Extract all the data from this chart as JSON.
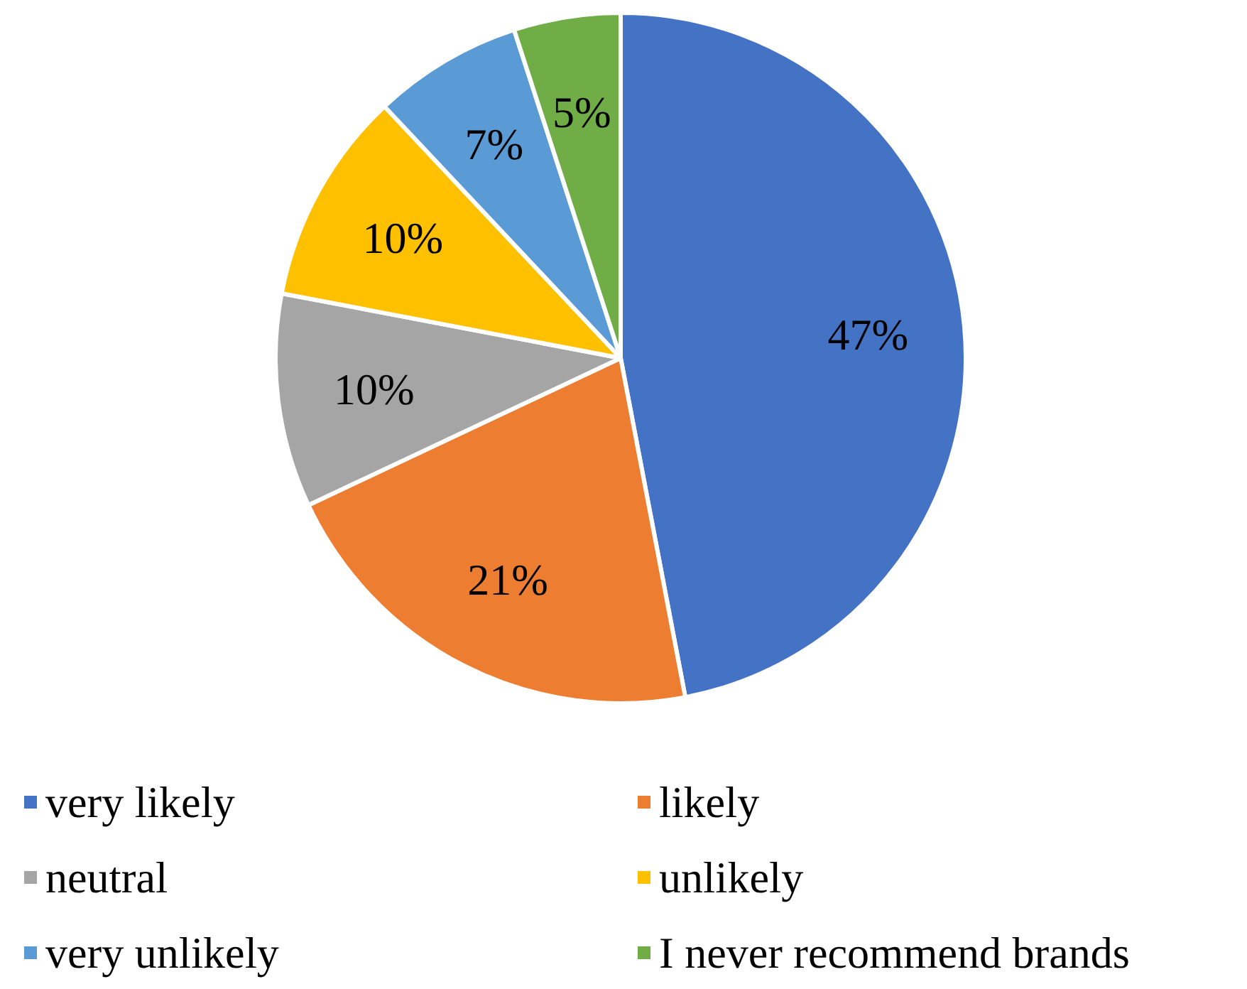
{
  "chart_data": {
    "type": "pie",
    "categories": [
      "very likely",
      "likely",
      "neutral",
      "unlikely",
      "very unlikely",
      "I never recommend brands"
    ],
    "values": [
      47,
      21,
      10,
      10,
      7,
      5
    ],
    "value_labels": [
      "47%",
      "21%",
      "10%",
      "10%",
      "7%",
      "5%"
    ],
    "colors": [
      "#4472c4",
      "#ed7d31",
      "#a5a5a5",
      "#ffc000",
      "#5b9bd5",
      "#70ad47"
    ],
    "legend": "bottom"
  }
}
